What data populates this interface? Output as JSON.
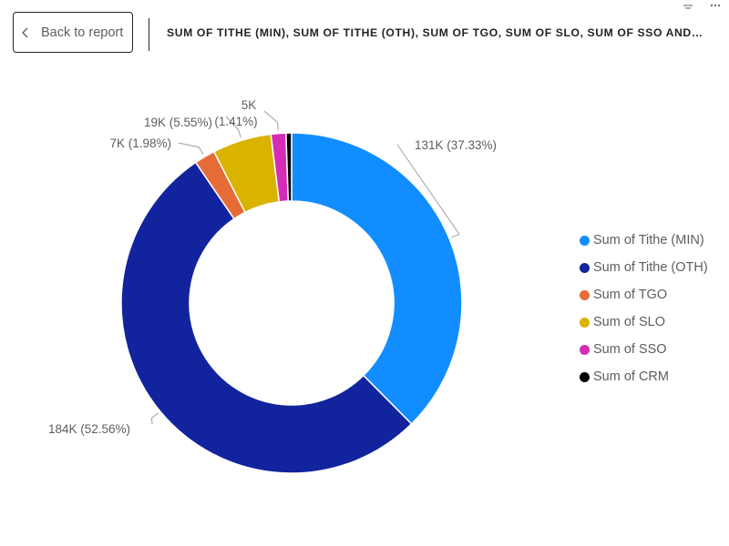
{
  "header": {
    "back_label": "Back to report",
    "visual_title": "SUM OF TITHE (MIN), SUM OF TITHE (OTH), SUM OF TGO, SUM OF SLO, SUM OF SSO AND SU..."
  },
  "icons": {
    "back": "chevron-left-icon",
    "filter": "filter-icon",
    "more": "more-options-icon"
  },
  "chart_data": {
    "type": "donut",
    "series": [
      {
        "name": "Sum of Tithe (MIN)",
        "value": 131,
        "percent": 37.33,
        "label": "131K (37.33%)",
        "color": "#118DFF"
      },
      {
        "name": "Sum of Tithe (OTH)",
        "value": 184,
        "percent": 52.56,
        "label": "184K (52.56%)",
        "color": "#12239E"
      },
      {
        "name": "Sum of TGO",
        "value": 7,
        "percent": 1.98,
        "label": "7K (1.98%)",
        "color": "#E66C37"
      },
      {
        "name": "Sum of SLO",
        "value": 19,
        "percent": 5.55,
        "label": "19K (5.55%)",
        "color": "#D9B300"
      },
      {
        "name": "Sum of SSO",
        "value": 5,
        "percent": 1.41,
        "label_line1": "5K",
        "label_line2": "(1.41%)",
        "color": "#D64550"
      },
      {
        "name": "Sum of CRM",
        "value": 1.8,
        "percent": 0.52,
        "color": "#000000"
      }
    ],
    "value_units": "thousands",
    "legend_position": "right",
    "start_angle": "top",
    "direction": "clockwise"
  },
  "colors": {
    "sso": "#D42CB7",
    "label_text": "#605e5c",
    "leader_line": "#a19f9d"
  }
}
